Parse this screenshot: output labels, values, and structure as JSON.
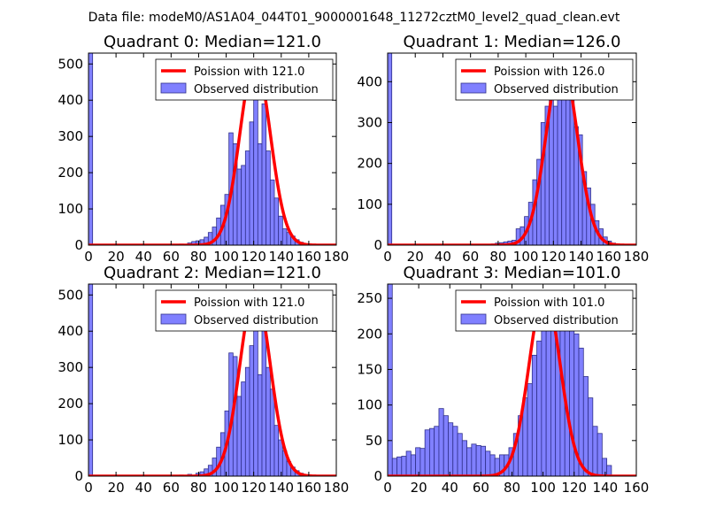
{
  "suptitle": "Data file: modeM0/AS1A04_044T01_9000001648_11272cztM0_level2_quad_clean.evt",
  "colors": {
    "bar_fill": "#8080ff",
    "bar_edge": "#30308a",
    "curve": "#ff0000",
    "axis": "#000000"
  },
  "chart_data": [
    {
      "type": "bar",
      "title": "Quadrant 0: Median=121.0",
      "legend": [
        "Poission with 121.0",
        "Observed distribution"
      ],
      "legend_position": "top-right",
      "xlim": [
        0,
        180
      ],
      "ylim": [
        0,
        530
      ],
      "xticks": [
        0,
        20,
        40,
        60,
        80,
        100,
        120,
        140,
        160,
        180
      ],
      "yticks": [
        0,
        100,
        200,
        300,
        400,
        500
      ],
      "bins": [
        [
          0,
          3,
          530
        ],
        [
          60,
          63,
          2
        ],
        [
          66,
          69,
          3
        ],
        [
          72,
          75,
          6
        ],
        [
          75,
          78,
          10
        ],
        [
          78,
          81,
          12
        ],
        [
          81,
          84,
          15
        ],
        [
          84,
          87,
          22
        ],
        [
          87,
          90,
          35
        ],
        [
          90,
          93,
          50
        ],
        [
          93,
          96,
          75
        ],
        [
          96,
          99,
          110
        ],
        [
          99,
          102,
          140
        ],
        [
          102,
          105,
          310
        ],
        [
          105,
          108,
          280
        ],
        [
          108,
          111,
          210
        ],
        [
          111,
          114,
          220
        ],
        [
          114,
          117,
          260
        ],
        [
          117,
          120,
          340
        ],
        [
          120,
          123,
          410
        ],
        [
          123,
          126,
          280
        ],
        [
          126,
          129,
          390
        ],
        [
          129,
          132,
          260
        ],
        [
          132,
          135,
          180
        ],
        [
          135,
          138,
          130
        ],
        [
          138,
          141,
          80
        ],
        [
          141,
          144,
          45
        ],
        [
          144,
          147,
          35
        ],
        [
          147,
          150,
          25
        ],
        [
          150,
          153,
          15
        ],
        [
          153,
          156,
          8
        ],
        [
          156,
          159,
          4
        ],
        [
          159,
          162,
          2
        ]
      ],
      "curve": {
        "mean": 121.0,
        "peak": 510,
        "label": "Poission with 121.0"
      }
    },
    {
      "type": "bar",
      "title": "Quadrant 1: Median=126.0",
      "legend": [
        "Poission with 126.0",
        "Observed distribution"
      ],
      "legend_position": "top-right",
      "xlim": [
        0,
        180
      ],
      "ylim": [
        0,
        470
      ],
      "xticks": [
        0,
        20,
        40,
        60,
        80,
        100,
        120,
        140,
        160,
        180
      ],
      "yticks": [
        0,
        100,
        200,
        300,
        400
      ],
      "bins": [
        [
          0,
          3,
          470
        ],
        [
          75,
          78,
          3
        ],
        [
          78,
          81,
          5
        ],
        [
          81,
          84,
          6
        ],
        [
          84,
          87,
          8
        ],
        [
          87,
          90,
          10
        ],
        [
          90,
          93,
          12
        ],
        [
          93,
          96,
          40
        ],
        [
          96,
          99,
          45
        ],
        [
          99,
          102,
          70
        ],
        [
          102,
          105,
          105
        ],
        [
          105,
          108,
          160
        ],
        [
          108,
          111,
          210
        ],
        [
          111,
          114,
          300
        ],
        [
          114,
          117,
          340
        ],
        [
          117,
          120,
          375
        ],
        [
          120,
          123,
          340
        ],
        [
          123,
          126,
          400
        ],
        [
          126,
          129,
          370
        ],
        [
          129,
          132,
          420
        ],
        [
          132,
          135,
          360
        ],
        [
          135,
          138,
          290
        ],
        [
          138,
          141,
          270
        ],
        [
          141,
          144,
          180
        ],
        [
          144,
          147,
          140
        ],
        [
          147,
          150,
          100
        ],
        [
          150,
          153,
          60
        ],
        [
          153,
          156,
          40
        ],
        [
          156,
          159,
          20
        ],
        [
          159,
          162,
          10
        ],
        [
          162,
          165,
          5
        ],
        [
          165,
          168,
          2
        ]
      ],
      "curve": {
        "mean": 126.0,
        "peak": 450,
        "label": "Poission with 126.0"
      }
    },
    {
      "type": "bar",
      "title": "Quadrant 2: Median=121.0",
      "legend": [
        "Poission with 121.0",
        "Observed distribution"
      ],
      "legend_position": "top-right",
      "xlim": [
        0,
        180
      ],
      "ylim": [
        0,
        530
      ],
      "xticks": [
        0,
        20,
        40,
        60,
        80,
        100,
        120,
        140,
        160,
        180
      ],
      "yticks": [
        0,
        100,
        200,
        300,
        400,
        500
      ],
      "bins": [
        [
          0,
          3,
          530
        ],
        [
          60,
          63,
          2
        ],
        [
          66,
          69,
          3
        ],
        [
          72,
          75,
          5
        ],
        [
          78,
          81,
          8
        ],
        [
          81,
          84,
          12
        ],
        [
          84,
          87,
          20
        ],
        [
          87,
          90,
          30
        ],
        [
          90,
          93,
          50
        ],
        [
          93,
          96,
          80
        ],
        [
          96,
          99,
          120
        ],
        [
          99,
          102,
          180
        ],
        [
          102,
          105,
          340
        ],
        [
          105,
          108,
          330
        ],
        [
          108,
          111,
          220
        ],
        [
          111,
          114,
          260
        ],
        [
          114,
          117,
          300
        ],
        [
          117,
          120,
          360
        ],
        [
          120,
          123,
          420
        ],
        [
          123,
          126,
          280
        ],
        [
          126,
          129,
          410
        ],
        [
          129,
          132,
          300
        ],
        [
          132,
          135,
          240
        ],
        [
          135,
          138,
          140
        ],
        [
          138,
          141,
          100
        ],
        [
          141,
          144,
          70
        ],
        [
          144,
          147,
          40
        ],
        [
          147,
          150,
          25
        ],
        [
          150,
          153,
          15
        ],
        [
          153,
          156,
          8
        ],
        [
          156,
          159,
          4
        ],
        [
          159,
          162,
          2
        ]
      ],
      "curve": {
        "mean": 121.0,
        "peak": 510,
        "label": "Poission with 121.0"
      }
    },
    {
      "type": "bar",
      "title": "Quadrant 3: Median=101.0",
      "legend": [
        "Poission with 101.0",
        "Observed distribution"
      ],
      "legend_position": "top-right",
      "xlim": [
        0,
        160
      ],
      "ylim": [
        0,
        270
      ],
      "xticks": [
        0,
        20,
        40,
        60,
        80,
        100,
        120,
        140,
        160
      ],
      "yticks": [
        0,
        50,
        100,
        150,
        200,
        250
      ],
      "bins": [
        [
          0,
          3,
          270
        ],
        [
          3,
          6,
          25
        ],
        [
          6,
          9,
          27
        ],
        [
          9,
          12,
          28
        ],
        [
          12,
          15,
          35
        ],
        [
          15,
          18,
          30
        ],
        [
          18,
          21,
          40
        ],
        [
          21,
          24,
          39
        ],
        [
          24,
          27,
          65
        ],
        [
          27,
          30,
          67
        ],
        [
          30,
          33,
          70
        ],
        [
          33,
          36,
          95
        ],
        [
          36,
          39,
          85
        ],
        [
          39,
          42,
          75
        ],
        [
          42,
          45,
          70
        ],
        [
          45,
          48,
          60
        ],
        [
          48,
          51,
          50
        ],
        [
          51,
          54,
          40
        ],
        [
          54,
          57,
          45
        ],
        [
          57,
          60,
          43
        ],
        [
          60,
          63,
          42
        ],
        [
          63,
          66,
          35
        ],
        [
          66,
          69,
          30
        ],
        [
          69,
          72,
          25
        ],
        [
          72,
          75,
          30
        ],
        [
          75,
          78,
          30
        ],
        [
          78,
          81,
          40
        ],
        [
          81,
          84,
          60
        ],
        [
          84,
          87,
          85
        ],
        [
          87,
          90,
          110
        ],
        [
          90,
          93,
          130
        ],
        [
          93,
          96,
          170
        ],
        [
          96,
          99,
          190
        ],
        [
          99,
          102,
          240
        ],
        [
          102,
          105,
          260
        ],
        [
          105,
          108,
          260
        ],
        [
          108,
          111,
          220
        ],
        [
          111,
          114,
          230
        ],
        [
          114,
          117,
          260
        ],
        [
          117,
          120,
          250
        ],
        [
          120,
          123,
          200
        ],
        [
          123,
          126,
          180
        ],
        [
          126,
          129,
          140
        ],
        [
          129,
          132,
          110
        ],
        [
          132,
          135,
          70
        ],
        [
          135,
          138,
          60
        ],
        [
          138,
          141,
          25
        ],
        [
          141,
          144,
          15
        ]
      ],
      "curve": {
        "mean": 101.0,
        "peak": 258,
        "label": "Poission with 101.0"
      }
    }
  ]
}
